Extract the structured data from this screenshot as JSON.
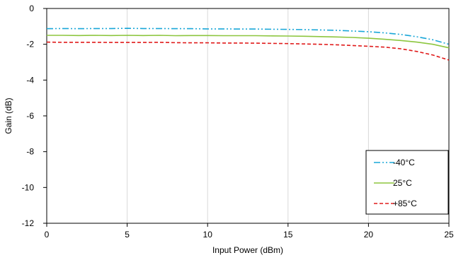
{
  "chart_data": {
    "type": "line",
    "title": "",
    "xlabel": "Input Power (dBm)",
    "ylabel": "Gain (dB)",
    "xlim": [
      0,
      25
    ],
    "ylim": [
      -12,
      0
    ],
    "xticks": [
      0,
      5,
      10,
      15,
      20,
      25
    ],
    "yticks": [
      0,
      -2,
      -4,
      -6,
      -8,
      -10,
      -12
    ],
    "grid": {
      "vertical": true,
      "horizontal": false
    },
    "legend": {
      "placement": "bottom-right"
    },
    "series": [
      {
        "name": "-40°C",
        "color": "#1aa7d8",
        "dash": "dash-dot-dot",
        "x": [
          0,
          1,
          2,
          3,
          4,
          5,
          6,
          7,
          8,
          9,
          10,
          11,
          12,
          13,
          14,
          15,
          16,
          17,
          18,
          19,
          20,
          21,
          22,
          23,
          24,
          25
        ],
        "y": [
          -1.13,
          -1.12,
          -1.13,
          -1.12,
          -1.12,
          -1.11,
          -1.12,
          -1.12,
          -1.13,
          -1.13,
          -1.14,
          -1.14,
          -1.15,
          -1.15,
          -1.16,
          -1.17,
          -1.18,
          -1.2,
          -1.22,
          -1.26,
          -1.3,
          -1.36,
          -1.45,
          -1.58,
          -1.75,
          -2.0
        ]
      },
      {
        "name": "25°C",
        "color": "#8dc63f",
        "dash": "solid",
        "x": [
          0,
          1,
          2,
          3,
          4,
          5,
          6,
          7,
          8,
          9,
          10,
          11,
          12,
          13,
          14,
          15,
          16,
          17,
          18,
          19,
          20,
          21,
          22,
          23,
          24,
          25
        ],
        "y": [
          -1.5,
          -1.5,
          -1.51,
          -1.5,
          -1.51,
          -1.5,
          -1.51,
          -1.5,
          -1.52,
          -1.51,
          -1.51,
          -1.52,
          -1.52,
          -1.52,
          -1.53,
          -1.54,
          -1.55,
          -1.57,
          -1.59,
          -1.62,
          -1.66,
          -1.72,
          -1.79,
          -1.88,
          -2.0,
          -2.2
        ]
      },
      {
        "name": "+85°C",
        "color": "#e01b1b",
        "dash": "dashed",
        "x": [
          0,
          1,
          2,
          3,
          4,
          5,
          6,
          7,
          8,
          9,
          10,
          11,
          12,
          13,
          14,
          15,
          16,
          17,
          18,
          19,
          20,
          21,
          22,
          23,
          24,
          25
        ],
        "y": [
          -1.88,
          -1.89,
          -1.89,
          -1.89,
          -1.9,
          -1.9,
          -1.9,
          -1.89,
          -1.91,
          -1.92,
          -1.92,
          -1.93,
          -1.93,
          -1.94,
          -1.95,
          -1.96,
          -1.98,
          -2.0,
          -2.03,
          -2.07,
          -2.11,
          -2.16,
          -2.25,
          -2.4,
          -2.6,
          -2.88
        ]
      }
    ]
  }
}
